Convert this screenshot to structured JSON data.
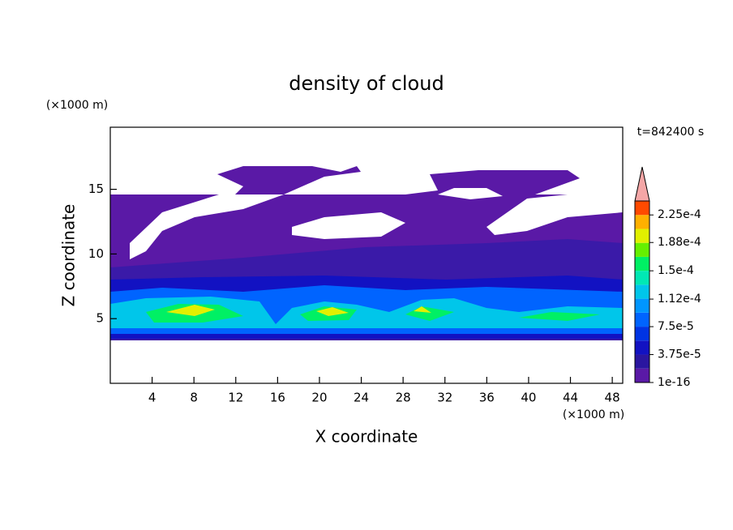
{
  "chart_data": {
    "type": "contour",
    "title": "density of cloud",
    "xlabel": "X coordinate",
    "ylabel": "Z coordinate",
    "x_unit": "(×1000 m)",
    "y_unit": "(×1000 m)",
    "annotation": "t=842400 s",
    "xlim": [
      0,
      49
    ],
    "xticks": [
      4,
      8,
      12,
      16,
      20,
      24,
      28,
      32,
      36,
      40,
      44,
      48
    ],
    "ylim": [
      0,
      19.8
    ],
    "yticks": [
      5,
      10,
      15
    ],
    "colorbar": {
      "clim": [
        1e-16,
        0.00024375
      ],
      "colors": [
        "#5a19a6",
        "#2a16a0",
        "#1212c2",
        "#0034e4",
        "#0064ff",
        "#0096ff",
        "#00c6ea",
        "#00e8b4",
        "#00f064",
        "#66f000",
        "#e2f000",
        "#ffb000",
        "#ff4a00"
      ],
      "over_color": "#f4a6a6",
      "ticks": [
        {
          "value": 1e-16,
          "label": "1e-16"
        },
        {
          "value": 3.75e-05,
          "label": "3.75e-5"
        },
        {
          "value": 7.5e-05,
          "label": "7.5e-5"
        },
        {
          "value": 0.000112,
          "label": "1.12e-4"
        },
        {
          "value": 0.00015,
          "label": "1.5e-4"
        },
        {
          "value": 0.000188,
          "label": "1.88e-4"
        },
        {
          "value": 0.000225,
          "label": "2.25e-4"
        }
      ]
    }
  }
}
